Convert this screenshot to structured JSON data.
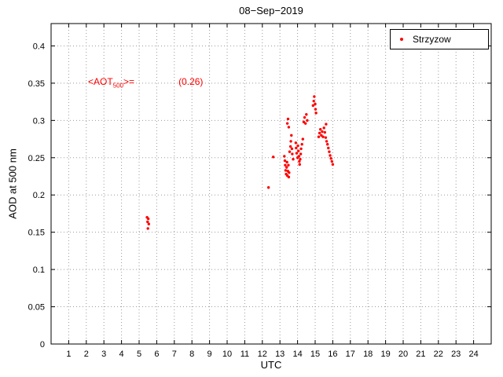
{
  "chart_data": {
    "type": "scatter",
    "title": "08−Sep−2019",
    "xlabel": "UTC",
    "ylabel": "AOD at 500 nm",
    "xlim": [
      0,
      25
    ],
    "ylim": [
      0,
      0.43
    ],
    "xticks": [
      1,
      2,
      3,
      4,
      5,
      6,
      7,
      8,
      9,
      10,
      11,
      12,
      13,
      14,
      15,
      16,
      17,
      18,
      19,
      20,
      21,
      22,
      23,
      24
    ],
    "ytick_values": [
      0,
      0.05,
      0.1,
      0.15,
      0.2,
      0.25,
      0.3,
      0.35,
      0.4
    ],
    "ytick_labels": [
      "0",
      "0.05",
      "0.1",
      "0.15",
      "0.2",
      "0.25",
      "0.3",
      "0.35",
      "0.4"
    ],
    "grid": true,
    "legend": {
      "label": "Strzyzow",
      "position": "top-right",
      "marker_color": "#ff0000"
    },
    "annotation": {
      "pre": "<AOT",
      "sub": "500",
      "post": ">=",
      "value": "(0.26)",
      "color": "#ff0000"
    },
    "series": [
      {
        "name": "Strzyzow",
        "color": "#ff0000",
        "marker": "point",
        "mean_aot500_label": "(0.26)",
        "points": [
          [
            5.45,
            0.17
          ],
          [
            5.52,
            0.168
          ],
          [
            5.48,
            0.164
          ],
          [
            5.55,
            0.161
          ],
          [
            5.5,
            0.155
          ],
          [
            12.35,
            0.21
          ],
          [
            12.62,
            0.251
          ],
          [
            13.25,
            0.252
          ],
          [
            13.28,
            0.246
          ],
          [
            13.3,
            0.24
          ],
          [
            13.32,
            0.233
          ],
          [
            13.35,
            0.228
          ],
          [
            13.38,
            0.237
          ],
          [
            13.4,
            0.244
          ],
          [
            13.42,
            0.226
          ],
          [
            13.45,
            0.232
          ],
          [
            13.48,
            0.24
          ],
          [
            13.5,
            0.224
          ],
          [
            13.52,
            0.23
          ],
          [
            13.42,
            0.296
          ],
          [
            13.46,
            0.302
          ],
          [
            13.5,
            0.291
          ],
          [
            13.55,
            0.258
          ],
          [
            13.6,
            0.265
          ],
          [
            13.62,
            0.272
          ],
          [
            13.65,
            0.28
          ],
          [
            13.68,
            0.262
          ],
          [
            13.7,
            0.255
          ],
          [
            13.75,
            0.248
          ],
          [
            13.9,
            0.27
          ],
          [
            13.92,
            0.263
          ],
          [
            13.95,
            0.256
          ],
          [
            14.0,
            0.25
          ],
          [
            14.02,
            0.266
          ],
          [
            14.05,
            0.259
          ],
          [
            14.08,
            0.252
          ],
          [
            14.1,
            0.245
          ],
          [
            14.12,
            0.241
          ],
          [
            14.15,
            0.248
          ],
          [
            14.18,
            0.255
          ],
          [
            14.2,
            0.262
          ],
          [
            14.25,
            0.268
          ],
          [
            14.3,
            0.275
          ],
          [
            14.35,
            0.298
          ],
          [
            14.4,
            0.304
          ],
          [
            14.45,
            0.296
          ],
          [
            14.5,
            0.308
          ],
          [
            14.55,
            0.3
          ],
          [
            14.88,
            0.32
          ],
          [
            14.92,
            0.326
          ],
          [
            14.95,
            0.332
          ],
          [
            15.0,
            0.322
          ],
          [
            15.02,
            0.315
          ],
          [
            15.05,
            0.31
          ],
          [
            15.2,
            0.278
          ],
          [
            15.25,
            0.283
          ],
          [
            15.3,
            0.288
          ],
          [
            15.35,
            0.28
          ],
          [
            15.4,
            0.285
          ],
          [
            15.45,
            0.278
          ],
          [
            15.5,
            0.29
          ],
          [
            15.55,
            0.284
          ],
          [
            15.6,
            0.277
          ],
          [
            15.62,
            0.295
          ],
          [
            15.65,
            0.272
          ],
          [
            15.7,
            0.268
          ],
          [
            15.75,
            0.263
          ],
          [
            15.8,
            0.258
          ],
          [
            15.85,
            0.253
          ],
          [
            15.9,
            0.249
          ],
          [
            15.95,
            0.245
          ],
          [
            16.0,
            0.241
          ]
        ]
      }
    ]
  }
}
